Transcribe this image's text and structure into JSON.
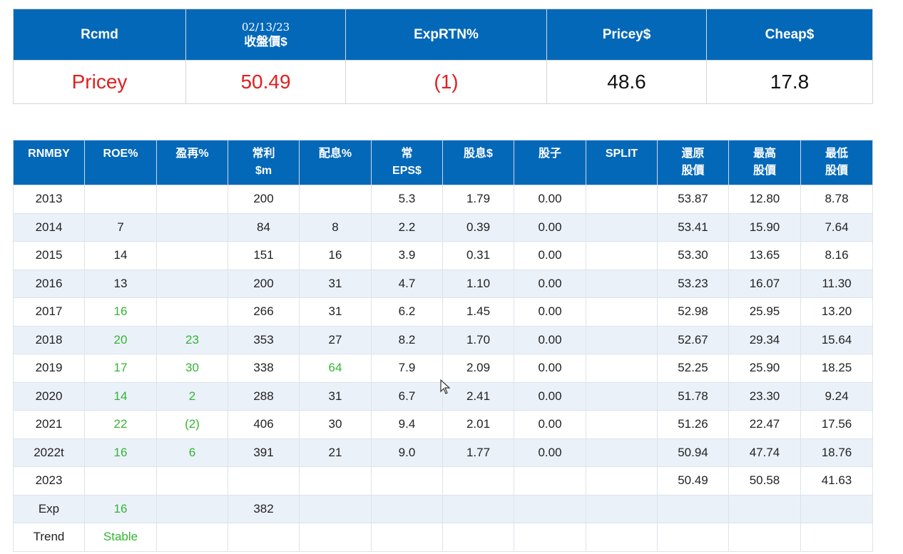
{
  "summary": {
    "headers": {
      "rcmd": "Rcmd",
      "date": "02/13/23",
      "close": "收盤價$",
      "exprtn": "ExpRTN%",
      "pricey": "Pricey$",
      "cheap": "Cheap$"
    },
    "values": {
      "rcmd": "Pricey",
      "close": "50.49",
      "exprtn": "(1)",
      "pricey": "48.6",
      "cheap": "17.8"
    }
  },
  "table": {
    "headers": [
      [
        "RNMBY"
      ],
      [
        "ROE%"
      ],
      [
        "盈再%"
      ],
      [
        "常利",
        "$m"
      ],
      [
        "配息%"
      ],
      [
        "常",
        "EPS$"
      ],
      [
        "股息$"
      ],
      [
        "股子"
      ],
      [
        "SPLIT"
      ],
      [
        "還原",
        "股價"
      ],
      [
        "最高",
        "股價"
      ],
      [
        "最低",
        "股價"
      ]
    ],
    "rows": [
      [
        "2013",
        "",
        "",
        "200",
        "",
        "5.3",
        "1.79",
        "0.00",
        "",
        "53.87",
        "12.80",
        "8.78"
      ],
      [
        "2014",
        "7",
        "",
        "84",
        "8",
        "2.2",
        "0.39",
        "0.00",
        "",
        "53.41",
        "15.90",
        "7.64"
      ],
      [
        "2015",
        "14",
        "",
        "151",
        "16",
        "3.9",
        "0.31",
        "0.00",
        "",
        "53.30",
        "13.65",
        "8.16"
      ],
      [
        "2016",
        "13",
        "",
        "200",
        "31",
        "4.7",
        "1.10",
        "0.00",
        "",
        "53.23",
        "16.07",
        "11.30"
      ],
      [
        "2017",
        "16",
        "",
        "266",
        "31",
        "6.2",
        "1.45",
        "0.00",
        "",
        "52.98",
        "25.95",
        "13.20"
      ],
      [
        "2018",
        "20",
        "23",
        "353",
        "27",
        "8.2",
        "1.70",
        "0.00",
        "",
        "52.67",
        "29.34",
        "15.64"
      ],
      [
        "2019",
        "17",
        "30",
        "338",
        "64",
        "7.9",
        "2.09",
        "0.00",
        "",
        "52.25",
        "25.90",
        "18.25"
      ],
      [
        "2020",
        "14",
        "2",
        "288",
        "31",
        "6.7",
        "2.41",
        "0.00",
        "",
        "51.78",
        "23.30",
        "9.24"
      ],
      [
        "2021",
        "22",
        "(2)",
        "406",
        "30",
        "9.4",
        "2.01",
        "0.00",
        "",
        "51.26",
        "22.47",
        "17.56"
      ],
      [
        "2022t",
        "16",
        "6",
        "391",
        "21",
        "9.0",
        "1.77",
        "0.00",
        "",
        "50.94",
        "47.74",
        "18.76"
      ],
      [
        "2023",
        "",
        "",
        "",
        "",
        "",
        "",
        "",
        "",
        "50.49",
        "50.58",
        "41.63"
      ],
      [
        "Exp",
        "16",
        "",
        "382",
        "",
        "",
        "",
        "",
        "",
        "",
        "",
        ""
      ],
      [
        "Trend",
        "Stable",
        "",
        "",
        "",
        "",
        "",
        "",
        "",
        "",
        "",
        ""
      ]
    ],
    "green_cells": [
      [
        4,
        1
      ],
      [
        5,
        1
      ],
      [
        5,
        2
      ],
      [
        6,
        1
      ],
      [
        6,
        2
      ],
      [
        6,
        4
      ],
      [
        7,
        1
      ],
      [
        7,
        2
      ],
      [
        8,
        1
      ],
      [
        8,
        2
      ],
      [
        9,
        1
      ],
      [
        9,
        2
      ],
      [
        11,
        1
      ],
      [
        12,
        1
      ]
    ]
  },
  "colors": {
    "header_bg": "#0468b9",
    "pricey_red": "#e02020",
    "positive_green": "#33b533",
    "row_alt": "#eaf1f9"
  }
}
